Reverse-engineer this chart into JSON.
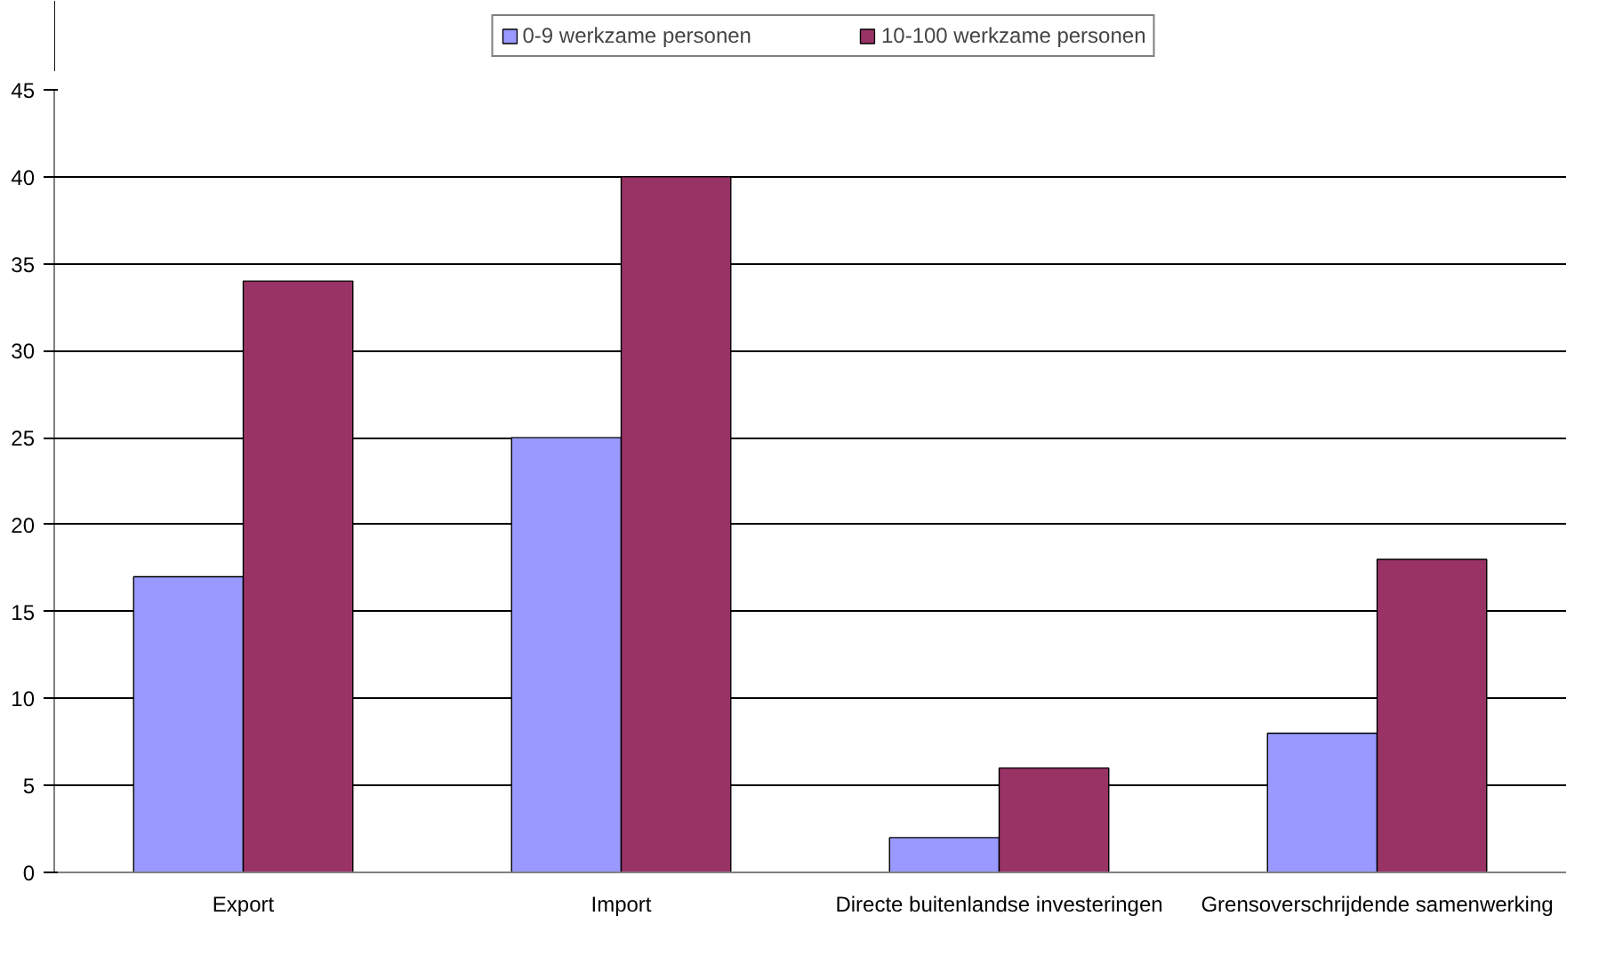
{
  "chart_data": {
    "type": "bar",
    "categories": [
      "Export",
      "Import",
      "Directe buitenlandse investeringen",
      "Grensoverschrijdende samenwerking"
    ],
    "series": [
      {
        "name": "0-9 werkzame personen",
        "color": "#9999ff",
        "values": [
          17,
          25,
          2,
          8
        ]
      },
      {
        "name": "10-100 werkzame personen",
        "color": "#993366",
        "values": [
          34,
          40,
          6,
          18
        ]
      }
    ],
    "ylim": [
      0,
      45
    ],
    "yticks": [
      0,
      5,
      10,
      15,
      20,
      25,
      30,
      35,
      40,
      45
    ],
    "grid": "y",
    "legend": "top"
  }
}
